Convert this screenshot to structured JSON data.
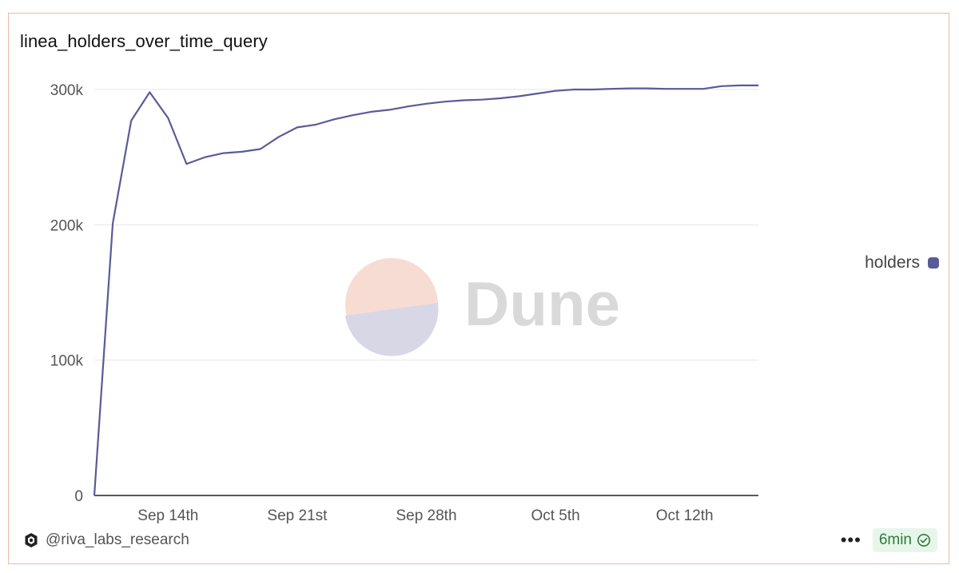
{
  "chart": {
    "title": "linea_holders_over_time_query",
    "watermark": "Dune"
  },
  "footer": {
    "author": "@riva_labs_research",
    "more_label": "•••",
    "refresh_label": "6min"
  },
  "colors": {
    "series": "#5b5a99",
    "border": "#f0b7a6",
    "grid": "#e6e6e6",
    "badge_bg": "#e7f6ea",
    "badge_text": "#2f7a3d"
  },
  "chart_data": {
    "type": "line",
    "title": "linea_holders_over_time_query",
    "xlabel": "",
    "ylabel": "",
    "ylim": [
      0,
      300000
    ],
    "yticks": [
      0,
      100000,
      200000,
      300000
    ],
    "ytick_labels": [
      "0",
      "100k",
      "200k",
      "300k"
    ],
    "xticks": [
      "2025-09-14",
      "2025-09-21",
      "2025-09-28",
      "2025-10-05",
      "2025-10-12"
    ],
    "xtick_labels": [
      "Sep 14th",
      "Sep 21st",
      "Sep 28th",
      "Oct 5th",
      "Oct 12th"
    ],
    "xlim": [
      "2025-09-10",
      "2025-10-16"
    ],
    "grid": true,
    "legend": "right",
    "series": [
      {
        "name": "holders",
        "x": [
          "2025-09-10",
          "2025-09-11",
          "2025-09-12",
          "2025-09-13",
          "2025-09-14",
          "2025-09-15",
          "2025-09-16",
          "2025-09-17",
          "2025-09-18",
          "2025-09-19",
          "2025-09-20",
          "2025-09-21",
          "2025-09-22",
          "2025-09-23",
          "2025-09-24",
          "2025-09-25",
          "2025-09-26",
          "2025-09-27",
          "2025-09-28",
          "2025-09-29",
          "2025-09-30",
          "2025-10-01",
          "2025-10-02",
          "2025-10-03",
          "2025-10-04",
          "2025-10-05",
          "2025-10-06",
          "2025-10-07",
          "2025-10-08",
          "2025-10-09",
          "2025-10-10",
          "2025-10-11",
          "2025-10-12",
          "2025-10-13",
          "2025-10-14",
          "2025-10-15",
          "2025-10-16"
        ],
        "values": [
          0,
          201000,
          277000,
          298000,
          279000,
          245000,
          250000,
          253000,
          254000,
          256000,
          265000,
          272000,
          274000,
          278000,
          281000,
          283500,
          285000,
          287500,
          289500,
          291000,
          292000,
          292500,
          293500,
          295000,
          297000,
          299000,
          300000,
          300000,
          300500,
          300800,
          300800,
          300500,
          300500,
          300500,
          302500,
          303000,
          303000
        ]
      }
    ]
  }
}
